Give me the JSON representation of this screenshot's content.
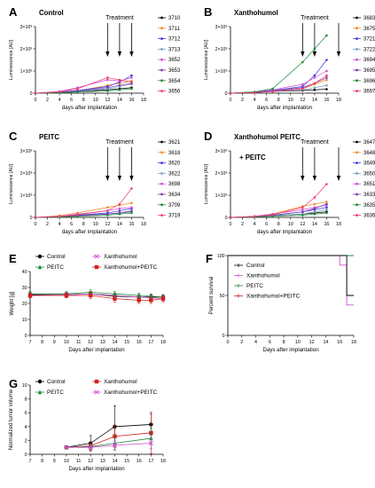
{
  "colors": {
    "axis": "#000000",
    "luc_series": [
      "#000000",
      "#f08a24",
      "#3c3ce0",
      "#7aa0c8",
      "#d04fd0",
      "#7a3ab0",
      "#1e8a3a",
      "#f03c6e"
    ]
  },
  "panels": [
    {
      "letter": "A",
      "title": "Control",
      "treatment_label": "Treatment",
      "ylabel": "Luminescence [AU]",
      "xlabel": "days after implantation",
      "y_ticks": [
        "0",
        "1×10⁸",
        "2×10⁸",
        "3×10⁸"
      ],
      "x_ticks": [
        "0",
        "2",
        "4",
        "6",
        "8",
        "10",
        "12",
        "14",
        "16",
        "18"
      ],
      "legend": [
        "3710",
        "3711",
        "3712",
        "3713",
        "3652",
        "3653",
        "3654",
        "3656"
      ]
    },
    {
      "letter": "B",
      "title": "Xanthohumol",
      "treatment_label": "Treatment",
      "ylabel": "Luminescence [AU]",
      "xlabel": "days after implantation",
      "y_ticks": [
        "0",
        "1×10⁸",
        "2×10⁸",
        "3×10⁸"
      ],
      "x_ticks": [
        "0",
        "2",
        "4",
        "6",
        "8",
        "10",
        "12",
        "14",
        "16",
        "18"
      ],
      "legend": [
        "3683",
        "3675",
        "3721",
        "3722",
        "3694",
        "3695",
        "3696",
        "3697"
      ]
    },
    {
      "letter": "C",
      "title": "PEITC",
      "treatment_label": "Treatment",
      "ylabel": "Luminescence [AU]",
      "xlabel": "days after implantation",
      "y_ticks": [
        "0",
        "1×10⁸",
        "2×10⁸",
        "3×10⁸"
      ],
      "x_ticks": [
        "0",
        "2",
        "4",
        "6",
        "8",
        "10",
        "12",
        "14",
        "16",
        "18"
      ],
      "legend": [
        "3621",
        "3618",
        "3620",
        "3622",
        "3698",
        "3634",
        "3709",
        "3719"
      ]
    },
    {
      "letter": "D",
      "title": "Xanthohumol + PEITC",
      "treatment_label": "Treatment",
      "ylabel": "Luminescence [AU]",
      "xlabel": "days after implantation",
      "y_ticks": [
        "0",
        "1×10⁸",
        "2×10⁸",
        "3×10⁸"
      ],
      "x_ticks": [
        "0",
        "2",
        "4",
        "6",
        "8",
        "10",
        "12",
        "14",
        "16",
        "18"
      ],
      "legend": [
        "3647",
        "3648",
        "3649",
        "3650",
        "3651",
        "3633",
        "3635",
        "3636"
      ]
    },
    {
      "letter": "E",
      "ylabel": "Weight [g]",
      "xlabel": "Days after implantation",
      "y_ticks": [
        "0",
        "10",
        "20",
        "30",
        "40"
      ],
      "x_ticks": [
        "7",
        "8",
        "9",
        "10",
        "11",
        "12",
        "13",
        "14",
        "15",
        "16",
        "17",
        "18"
      ],
      "legend": [
        "Control",
        "Xanthohumol",
        "PEITC",
        "Xanthohumol+PEITC"
      ]
    },
    {
      "letter": "F",
      "ylabel": "Percent survival",
      "xlabel": "Days after implantation",
      "y_ticks": [
        "0",
        "50",
        "100"
      ],
      "x_ticks": [
        "0",
        "2",
        "4",
        "6",
        "8",
        "10",
        "12",
        "14",
        "16",
        "18"
      ],
      "legend": [
        "Control",
        "Xanthohumol",
        "PEITC",
        "Xanthohumol+PEITC"
      ]
    },
    {
      "letter": "G",
      "ylabel": "Normalized tumor volume",
      "xlabel": "Days after implantation",
      "y_ticks": [
        "0",
        "2",
        "4",
        "6",
        "8",
        "10"
      ],
      "x_ticks": [
        "7",
        "8",
        "9",
        "10",
        "11",
        "12",
        "13",
        "14",
        "15",
        "16",
        "17",
        "18"
      ],
      "legend": [
        "Control",
        "Xanthohumol",
        "PEITC",
        "Xanthohumol+PEITC"
      ]
    }
  ],
  "chart_data": [
    {
      "type": "line",
      "id": "A",
      "x": [
        0,
        4,
        7,
        12,
        14,
        16
      ],
      "ylim": [
        0,
        300000000
      ],
      "xlim": [
        0,
        18
      ],
      "treatment_days": [
        12,
        14,
        16
      ],
      "series": [
        {
          "name": "3710",
          "color": "#000000",
          "values": [
            0,
            3000000,
            8000000,
            15000000,
            20000000,
            25000000
          ]
        },
        {
          "name": "3711",
          "color": "#f08a24",
          "values": [
            0,
            4000000,
            10000000,
            35000000,
            45000000,
            55000000
          ]
        },
        {
          "name": "3712",
          "color": "#3c3ce0",
          "values": [
            0,
            5000000,
            12000000,
            30000000,
            50000000,
            80000000
          ]
        },
        {
          "name": "3713",
          "color": "#7aa0c8",
          "values": [
            0,
            3000000,
            8000000,
            20000000,
            30000000,
            40000000
          ]
        },
        {
          "name": "3652",
          "color": "#d04fd0",
          "values": [
            0,
            8000000,
            25000000,
            60000000,
            55000000,
            70000000
          ]
        },
        {
          "name": "3653",
          "color": "#7a3ab0",
          "values": [
            0,
            4000000,
            10000000,
            25000000,
            35000000,
            45000000
          ]
        },
        {
          "name": "3654",
          "color": "#1e8a3a",
          "values": [
            0,
            2000000,
            5000000,
            10000000,
            15000000,
            20000000
          ]
        },
        {
          "name": "3656",
          "color": "#f03c6e",
          "values": [
            0,
            6000000,
            20000000,
            70000000,
            60000000,
            50000000
          ]
        }
      ]
    },
    {
      "type": "line",
      "id": "B",
      "x": [
        0,
        4,
        7,
        12,
        14,
        16
      ],
      "ylim": [
        0,
        300000000
      ],
      "xlim": [
        0,
        18
      ],
      "treatment_days": [
        12,
        14,
        18
      ],
      "series": [
        {
          "name": "3683",
          "color": "#000000",
          "values": [
            0,
            3000000,
            8000000,
            12000000,
            15000000,
            18000000
          ]
        },
        {
          "name": "3675",
          "color": "#f08a24",
          "values": [
            0,
            4000000,
            10000000,
            20000000,
            40000000,
            60000000
          ]
        },
        {
          "name": "3721",
          "color": "#3c3ce0",
          "values": [
            0,
            5000000,
            12000000,
            30000000,
            80000000,
            150000000
          ]
        },
        {
          "name": "3722",
          "color": "#7aa0c8",
          "values": [
            0,
            3000000,
            8000000,
            15000000,
            25000000,
            35000000
          ]
        },
        {
          "name": "3694",
          "color": "#d04fd0",
          "values": [
            0,
            5000000,
            15000000,
            40000000,
            70000000,
            100000000
          ]
        },
        {
          "name": "3695",
          "color": "#7a3ab0",
          "values": [
            0,
            4000000,
            10000000,
            25000000,
            45000000,
            70000000
          ]
        },
        {
          "name": "3696",
          "color": "#1e8a3a",
          "values": [
            0,
            6000000,
            20000000,
            140000000,
            200000000,
            260000000
          ]
        },
        {
          "name": "3697",
          "color": "#f03c6e",
          "values": [
            0,
            3000000,
            8000000,
            20000000,
            45000000,
            80000000
          ]
        }
      ]
    },
    {
      "type": "line",
      "id": "C",
      "x": [
        0,
        4,
        7,
        12,
        14,
        16
      ],
      "ylim": [
        0,
        300000000
      ],
      "xlim": [
        0,
        18
      ],
      "treatment_days": [
        12,
        14,
        16
      ],
      "series": [
        {
          "name": "3621",
          "color": "#000000",
          "values": [
            0,
            3000000,
            8000000,
            15000000,
            20000000,
            25000000
          ]
        },
        {
          "name": "3618",
          "color": "#f08a24",
          "values": [
            0,
            8000000,
            20000000,
            45000000,
            55000000,
            65000000
          ]
        },
        {
          "name": "3620",
          "color": "#3c3ce0",
          "values": [
            0,
            4000000,
            10000000,
            20000000,
            30000000,
            40000000
          ]
        },
        {
          "name": "3622",
          "color": "#7aa0c8",
          "values": [
            0,
            3000000,
            8000000,
            15000000,
            20000000,
            25000000
          ]
        },
        {
          "name": "3698",
          "color": "#d04fd0",
          "values": [
            0,
            5000000,
            15000000,
            30000000,
            40000000,
            45000000
          ]
        },
        {
          "name": "3634",
          "color": "#7a3ab0",
          "values": [
            0,
            3000000,
            8000000,
            15000000,
            20000000,
            30000000
          ]
        },
        {
          "name": "3709",
          "color": "#1e8a3a",
          "values": [
            0,
            2000000,
            5000000,
            10000000,
            15000000,
            20000000
          ]
        },
        {
          "name": "3719",
          "color": "#f03c6e",
          "values": [
            0,
            4000000,
            12000000,
            30000000,
            60000000,
            130000000
          ]
        }
      ]
    },
    {
      "type": "line",
      "id": "D",
      "x": [
        0,
        4,
        7,
        12,
        14,
        16
      ],
      "ylim": [
        0,
        300000000
      ],
      "xlim": [
        0,
        18
      ],
      "treatment_days": [
        12,
        14,
        18
      ],
      "series": [
        {
          "name": "3647",
          "color": "#000000",
          "values": [
            0,
            3000000,
            8000000,
            15000000,
            20000000,
            25000000
          ]
        },
        {
          "name": "3648",
          "color": "#f08a24",
          "values": [
            0,
            5000000,
            15000000,
            50000000,
            60000000,
            70000000
          ]
        },
        {
          "name": "3649",
          "color": "#3c3ce0",
          "values": [
            0,
            4000000,
            10000000,
            25000000,
            35000000,
            45000000
          ]
        },
        {
          "name": "3650",
          "color": "#7aa0c8",
          "values": [
            0,
            3000000,
            8000000,
            15000000,
            25000000,
            35000000
          ]
        },
        {
          "name": "3651",
          "color": "#d04fd0",
          "values": [
            0,
            5000000,
            15000000,
            35000000,
            45000000,
            55000000
          ]
        },
        {
          "name": "3633",
          "color": "#7a3ab0",
          "values": [
            0,
            4000000,
            10000000,
            25000000,
            40000000,
            60000000
          ]
        },
        {
          "name": "3635",
          "color": "#1e8a3a",
          "values": [
            0,
            2000000,
            5000000,
            10000000,
            15000000,
            20000000
          ]
        },
        {
          "name": "3636",
          "color": "#f03c6e",
          "values": [
            0,
            4000000,
            12000000,
            45000000,
            90000000,
            150000000
          ]
        }
      ]
    },
    {
      "type": "line",
      "id": "E",
      "ylim": [
        0,
        40
      ],
      "xlim": [
        7,
        18
      ],
      "series": [
        {
          "name": "Control",
          "color": "#000000",
          "marker": "circle",
          "x": [
            7,
            10,
            12,
            14,
            16,
            17,
            18
          ],
          "values": [
            25.5,
            25.5,
            26,
            24.5,
            24,
            24,
            24
          ],
          "err": [
            1.5,
            1.5,
            1.5,
            1.5,
            1.5,
            1.5,
            1.5
          ]
        },
        {
          "name": "Xanthohumol",
          "color": "#d04fd0",
          "marker": "x",
          "x": [
            7,
            10,
            12,
            14,
            16,
            17,
            18
          ],
          "values": [
            25,
            25.5,
            26,
            25,
            24,
            23.5,
            23
          ],
          "err": [
            1.5,
            1.5,
            1.5,
            1.5,
            1.5,
            1.5,
            1.5
          ]
        },
        {
          "name": "PEITC",
          "color": "#1e8a3a",
          "marker": "triangle",
          "x": [
            7,
            10,
            12,
            14,
            16,
            17,
            18
          ],
          "values": [
            26,
            26,
            27,
            26,
            25,
            24.5,
            24
          ],
          "err": [
            1.5,
            1.5,
            1.5,
            1.5,
            1.5,
            1.5,
            1.5
          ]
        },
        {
          "name": "Xanthohumol+PEITC",
          "color": "#d02020",
          "marker": "square",
          "x": [
            7,
            10,
            12,
            14,
            16,
            17,
            18
          ],
          "values": [
            25,
            25,
            25,
            23,
            22,
            22,
            23
          ],
          "err": [
            1.5,
            1.5,
            2,
            2,
            2,
            2,
            2
          ]
        }
      ]
    },
    {
      "type": "line",
      "id": "F",
      "step": true,
      "ylim": [
        0,
        100
      ],
      "xlim": [
        0,
        18
      ],
      "series": [
        {
          "name": "Control",
          "color": "#000000",
          "x": [
            0,
            17,
            17,
            18
          ],
          "values": [
            100,
            100,
            50,
            50
          ]
        },
        {
          "name": "Xanthohumol",
          "color": "#d04fd0",
          "x": [
            0,
            16,
            16,
            17,
            17,
            18
          ],
          "values": [
            100,
            100,
            88,
            88,
            38,
            38
          ]
        },
        {
          "name": "PEITC",
          "color": "#1e8a3a",
          "x": [
            0,
            18
          ],
          "values": [
            100,
            100
          ]
        },
        {
          "name": "Xanthohumol+PEITC",
          "color": "#d02020",
          "x": [
            0,
            18
          ],
          "values": [
            100,
            100
          ]
        }
      ]
    },
    {
      "type": "line",
      "id": "G",
      "ylim": [
        0,
        10
      ],
      "xlim": [
        7,
        18
      ],
      "series": [
        {
          "name": "Control",
          "color": "#000000",
          "marker": "circle",
          "x": [
            10,
            12,
            14,
            17
          ],
          "values": [
            1.0,
            1.6,
            4.0,
            4.3
          ],
          "err": [
            0.1,
            1.1,
            3.0,
            1.5
          ]
        },
        {
          "name": "Xanthohumol",
          "color": "#d02020",
          "marker": "square",
          "x": [
            10,
            12,
            14,
            17
          ],
          "values": [
            1.0,
            1.2,
            2.6,
            3.1
          ],
          "err": [
            0.1,
            0.6,
            1.6,
            3.0
          ]
        },
        {
          "name": "PEITC",
          "color": "#1e8a3a",
          "marker": "triangle",
          "x": [
            10,
            12,
            14,
            17
          ],
          "values": [
            1.0,
            1.1,
            1.6,
            2.3
          ],
          "err": [
            0.1,
            0.4,
            1.0,
            1.5
          ]
        },
        {
          "name": "Xanthohumol+PEITC",
          "color": "#d04fd0",
          "marker": "x",
          "x": [
            10,
            12,
            14,
            17
          ],
          "values": [
            1.0,
            1.0,
            1.3,
            1.6
          ],
          "err": [
            0.1,
            0.3,
            0.6,
            0.8
          ]
        }
      ]
    }
  ]
}
